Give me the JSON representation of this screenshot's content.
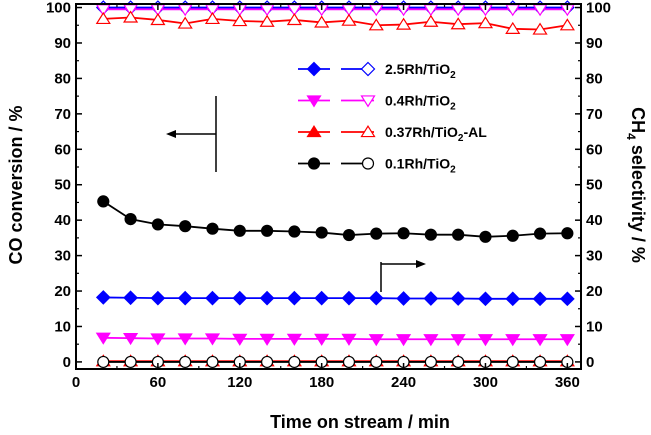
{
  "chart_data": {
    "type": "line",
    "xlabel": "Time on stream / min",
    "ylabel_left": "CO conversion / %",
    "ylabel_right": "CH4 selectivity / %",
    "ylabel_right_parts": {
      "pre": "CH",
      "sub": "4",
      "post": " selectivity / %"
    },
    "xlim": [
      0,
      370
    ],
    "ylim_left": [
      -2,
      101
    ],
    "ylim_right": [
      -2,
      101
    ],
    "x_ticks": [
      "0",
      "60",
      "120",
      "180",
      "240",
      "300",
      "360"
    ],
    "y_ticks": [
      "0",
      "10",
      "20",
      "30",
      "40",
      "50",
      "60",
      "70",
      "80",
      "90",
      "100"
    ],
    "x": [
      20,
      40,
      60,
      80,
      100,
      120,
      140,
      160,
      180,
      200,
      220,
      240,
      260,
      280,
      300,
      320,
      340,
      360
    ],
    "series": [
      {
        "name": "2.5Rh/TiO2",
        "label_parts": {
          "pre": "2.5Rh/TiO",
          "sub": "2",
          "post": ""
        },
        "color": "#0000ff",
        "marker": "diamond",
        "conversion": [
          18.2,
          18.1,
          18.0,
          18.0,
          18.0,
          18.0,
          18.0,
          18.0,
          18.0,
          18.0,
          18.0,
          17.9,
          17.9,
          17.9,
          17.8,
          17.8,
          17.8,
          17.8
        ],
        "selectivity": [
          100,
          100,
          100,
          100,
          100,
          100,
          100,
          100,
          100,
          100,
          100,
          100,
          100,
          100,
          100,
          100,
          100,
          100
        ]
      },
      {
        "name": "0.4Rh/TiO2",
        "label_parts": {
          "pre": "0.4Rh/TiO",
          "sub": "2",
          "post": ""
        },
        "color": "#ff00ff",
        "marker": "triangle-down",
        "conversion": [
          6.8,
          6.7,
          6.6,
          6.6,
          6.6,
          6.5,
          6.5,
          6.5,
          6.5,
          6.5,
          6.4,
          6.4,
          6.4,
          6.4,
          6.4,
          6.4,
          6.4,
          6.4
        ],
        "selectivity": [
          99.5,
          99.5,
          99.5,
          99.5,
          99.5,
          99.5,
          99.5,
          99.5,
          99.5,
          99.5,
          99.5,
          99.5,
          99.5,
          99.5,
          99.5,
          99.5,
          99.5,
          99.5
        ]
      },
      {
        "name": "0.37Rh/TiO2-AL",
        "label_parts": {
          "pre": "0.37Rh/TiO",
          "sub": "2",
          "post": "-AL"
        },
        "color": "#ff0000",
        "marker": "triangle-up",
        "conversion": [
          0.2,
          0.2,
          0.2,
          0.2,
          0.2,
          0.2,
          0.2,
          0.2,
          0.2,
          0.2,
          0.2,
          0.2,
          0.2,
          0.2,
          0.2,
          0.2,
          0.2,
          0.2
        ],
        "selectivity": [
          96.8,
          97.2,
          96.5,
          95.5,
          96.8,
          96.2,
          96.0,
          96.5,
          95.8,
          96.3,
          95.0,
          95.2,
          96.0,
          95.3,
          95.6,
          94.0,
          93.8,
          95.0
        ]
      },
      {
        "name": "0.1Rh/TiO2",
        "label_parts": {
          "pre": "0.1Rh/TiO",
          "sub": "2",
          "post": ""
        },
        "color": "#000000",
        "marker": "circle",
        "conversion": [
          45.3,
          40.3,
          38.8,
          38.3,
          37.6,
          37.0,
          37.0,
          36.8,
          36.5,
          35.8,
          36.2,
          36.3,
          35.9,
          35.9,
          35.3,
          35.6,
          36.2,
          36.3
        ],
        "selectivity": [
          0,
          0,
          0,
          0,
          0,
          0,
          0,
          0,
          0,
          0,
          0,
          0,
          0,
          0,
          0,
          0,
          0,
          0
        ]
      }
    ],
    "legend_placement": "upper-right inside plot",
    "grid": false,
    "annotations": [
      {
        "type": "arrow",
        "direction": "left",
        "meaning": "filled symbols refer to left axis (CO conversion)"
      },
      {
        "type": "arrow",
        "direction": "right",
        "meaning": "open symbols refer to right axis (CH4 selectivity)"
      }
    ]
  }
}
